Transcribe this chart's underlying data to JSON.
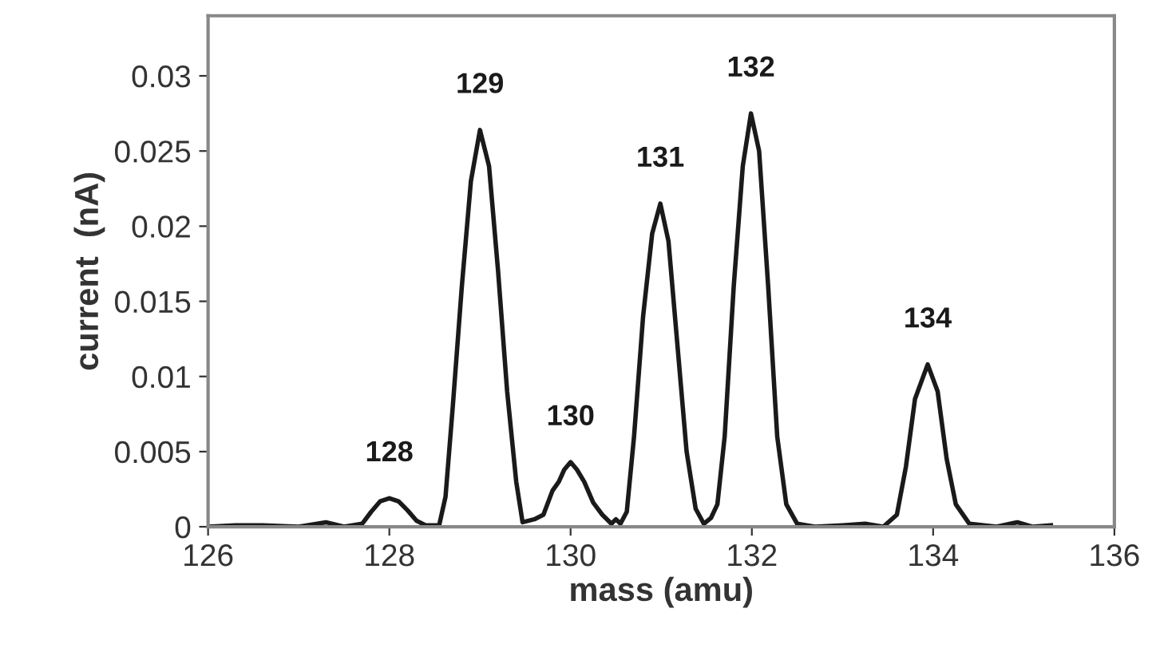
{
  "chart_data": {
    "type": "line",
    "xlabel": "mass (amu)",
    "ylabel": "current  (nA)",
    "xlim": [
      126,
      136
    ],
    "ylim": [
      0,
      0.034
    ],
    "xticks": [
      126,
      128,
      130,
      132,
      134,
      136
    ],
    "yticks": [
      0,
      0.005,
      0.01,
      0.015,
      0.02,
      0.025,
      0.03
    ],
    "grid": false,
    "legend": false,
    "marker": "none",
    "line_style": "solid",
    "series": [
      {
        "color": "#1a1a1a",
        "x": [
          126.0,
          126.3,
          126.6,
          127.0,
          127.3,
          127.5,
          127.7,
          127.8,
          127.9,
          128.0,
          128.1,
          128.2,
          128.3,
          128.4,
          128.55,
          128.62,
          128.7,
          128.8,
          128.9,
          129.0,
          129.1,
          129.2,
          129.3,
          129.4,
          129.47,
          129.6,
          129.7,
          129.8,
          129.87,
          129.93,
          130.0,
          130.07,
          130.15,
          130.25,
          130.35,
          130.45,
          130.5,
          130.55,
          130.62,
          130.7,
          130.8,
          130.9,
          130.99,
          131.08,
          131.18,
          131.28,
          131.38,
          131.47,
          131.55,
          131.62,
          131.7,
          131.8,
          131.9,
          131.99,
          132.08,
          132.18,
          132.28,
          132.38,
          132.5,
          132.7,
          133.0,
          133.25,
          133.45,
          133.6,
          133.7,
          133.8,
          133.94,
          134.05,
          134.15,
          134.25,
          134.4,
          134.7,
          134.93,
          135.1,
          135.3
        ],
        "values": [
          0,
          0.0001,
          0.0001,
          0,
          0.0003,
          0,
          0.0002,
          0.001,
          0.0017,
          0.0019,
          0.0017,
          0.0011,
          0.0004,
          0.0001,
          0.0001,
          0.002,
          0.008,
          0.016,
          0.023,
          0.0264,
          0.024,
          0.017,
          0.009,
          0.003,
          0.0003,
          0.0005,
          0.0008,
          0.0024,
          0.003,
          0.0038,
          0.0043,
          0.0038,
          0.003,
          0.0016,
          0.0008,
          0.0002,
          0.0005,
          0.0002,
          0.001,
          0.006,
          0.014,
          0.0195,
          0.0215,
          0.019,
          0.012,
          0.005,
          0.0012,
          0.0002,
          0.0006,
          0.0015,
          0.006,
          0.016,
          0.024,
          0.0275,
          0.025,
          0.016,
          0.006,
          0.0015,
          0.0002,
          0,
          0.0001,
          0.0002,
          0,
          0.0008,
          0.004,
          0.0085,
          0.0108,
          0.009,
          0.0045,
          0.0015,
          0.0002,
          0,
          0.0003,
          0,
          0.0001
        ]
      }
    ],
    "annotations": [
      {
        "text": "128",
        "x": 128.0,
        "y": 0.0019
      },
      {
        "text": "129",
        "x": 129.0,
        "y": 0.0264
      },
      {
        "text": "130",
        "x": 130.0,
        "y": 0.0043
      },
      {
        "text": "131",
        "x": 130.99,
        "y": 0.0215
      },
      {
        "text": "132",
        "x": 131.99,
        "y": 0.0275
      },
      {
        "text": "134",
        "x": 133.94,
        "y": 0.0108
      }
    ]
  }
}
